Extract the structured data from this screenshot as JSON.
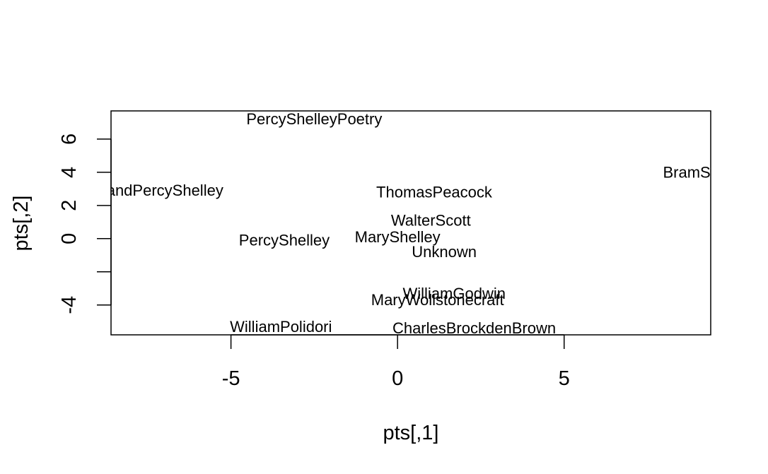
{
  "chart_data": {
    "type": "scatter",
    "title": "",
    "xlabel": "pts[,1]",
    "ylabel": "pts[,2]",
    "xlim": [
      -8.6,
      9.4
    ],
    "ylim": [
      -5.8,
      7.7
    ],
    "x_ticks": [
      -5,
      0,
      5
    ],
    "x_tick_labels": [
      "-5",
      "0",
      "5"
    ],
    "y_ticks": [
      -4,
      -2,
      0,
      2,
      4,
      6
    ],
    "y_tick_labels": [
      "-4",
      "",
      "0",
      "2",
      "4",
      "6"
    ],
    "grid": false,
    "points": [
      {
        "label": "PercyShelleyPoetry",
        "x": -2.5,
        "y": 7.2
      },
      {
        "label": "BramStoker",
        "x": 9.2,
        "y": 4.0
      },
      {
        "label": "MaryandPercyShelley",
        "x": -7.5,
        "y": 2.9
      },
      {
        "label": "ThomasPeacock",
        "x": 1.1,
        "y": 2.8
      },
      {
        "label": "WalterScott",
        "x": 1.0,
        "y": 1.1
      },
      {
        "label": "PercyShelley",
        "x": -3.4,
        "y": -0.1
      },
      {
        "label": "MaryShelley",
        "x": 0.0,
        "y": 0.1
      },
      {
        "label": "Unknown",
        "x": 1.4,
        "y": -0.8
      },
      {
        "label": "WilliamGodwin",
        "x": 1.7,
        "y": -3.3
      },
      {
        "label": "MaryWollstonecraft",
        "x": 1.2,
        "y": -3.7
      },
      {
        "label": "WilliamPolidori",
        "x": -3.5,
        "y": -5.3
      },
      {
        "label": "CharlesBrockdenBrown",
        "x": 2.3,
        "y": -5.4
      }
    ]
  }
}
